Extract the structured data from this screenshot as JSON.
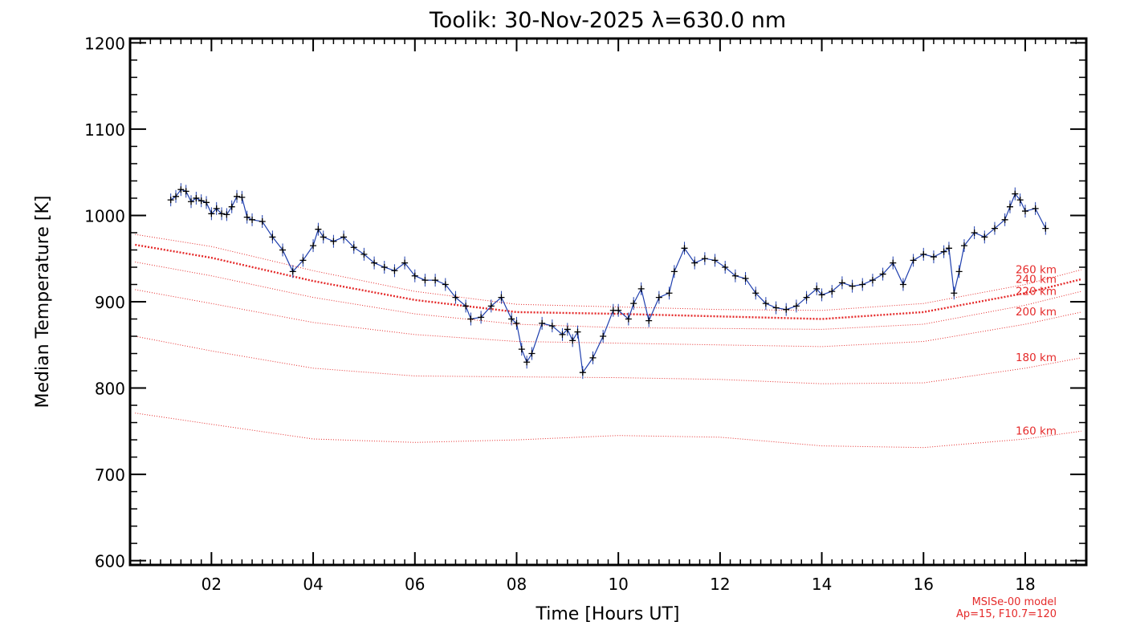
{
  "chart_data": {
    "type": "line",
    "title": "Toolik: 30-Nov-2025 λ=630.0 nm",
    "xlabel": "Time [Hours UT]",
    "ylabel": "Median Temperature [K]",
    "xlim": [
      0.4,
      19.2
    ],
    "ylim": [
      595,
      1205
    ],
    "xticks": [
      2,
      4,
      6,
      8,
      10,
      12,
      14,
      16,
      18
    ],
    "xtick_labels": [
      "02",
      "04",
      "06",
      "08",
      "10",
      "12",
      "14",
      "16",
      "18"
    ],
    "yticks": [
      600,
      700,
      800,
      900,
      1000,
      1100,
      1200
    ],
    "ytick_labels": [
      "600",
      "700",
      "800",
      "900",
      "1000",
      "1100",
      "1200"
    ],
    "grid": false,
    "colors": {
      "observed_line": "#1f3fae",
      "observed_marker": "#000000",
      "model": "#e52a2a",
      "axes": "#000000"
    },
    "observed": {
      "marker": "plus",
      "error_bars": true,
      "x": [
        1.2,
        1.3,
        1.4,
        1.5,
        1.6,
        1.7,
        1.8,
        1.9,
        2.0,
        2.1,
        2.2,
        2.3,
        2.4,
        2.5,
        2.6,
        2.7,
        2.8,
        3.0,
        3.2,
        3.4,
        3.6,
        3.8,
        4.0,
        4.1,
        4.2,
        4.4,
        4.6,
        4.8,
        5.0,
        5.2,
        5.4,
        5.6,
        5.8,
        6.0,
        6.2,
        6.4,
        6.6,
        6.8,
        7.0,
        7.1,
        7.3,
        7.5,
        7.7,
        7.9,
        8.0,
        8.1,
        8.2,
        8.3,
        8.5,
        8.7,
        8.9,
        9.0,
        9.1,
        9.2,
        9.3,
        9.5,
        9.7,
        9.9,
        10.0,
        10.2,
        10.3,
        10.45,
        10.6,
        10.8,
        11.0,
        11.1,
        11.3,
        11.5,
        11.7,
        11.9,
        12.1,
        12.3,
        12.5,
        12.7,
        12.9,
        13.1,
        13.3,
        13.5,
        13.7,
        13.9,
        14.0,
        14.2,
        14.4,
        14.6,
        14.8,
        15.0,
        15.2,
        15.4,
        15.6,
        15.8,
        16.0,
        16.2,
        16.4,
        16.5,
        16.6,
        16.7,
        16.8,
        17.0,
        17.2,
        17.4,
        17.6,
        17.7,
        17.8,
        17.9,
        18.0,
        18.2,
        18.4
      ],
      "y": [
        1018,
        1022,
        1030,
        1028,
        1016,
        1020,
        1017,
        1015,
        1002,
        1008,
        1002,
        1001,
        1010,
        1022,
        1021,
        998,
        995,
        993,
        975,
        960,
        935,
        948,
        965,
        984,
        975,
        970,
        975,
        963,
        955,
        945,
        940,
        936,
        945,
        930,
        925,
        925,
        920,
        905,
        895,
        880,
        882,
        895,
        905,
        880,
        875,
        845,
        830,
        840,
        875,
        872,
        862,
        868,
        855,
        865,
        818,
        835,
        860,
        890,
        890,
        880,
        898,
        915,
        878,
        905,
        910,
        935,
        962,
        945,
        950,
        948,
        940,
        930,
        927,
        910,
        898,
        893,
        891,
        895,
        905,
        915,
        908,
        912,
        922,
        918,
        920,
        925,
        932,
        945,
        920,
        948,
        955,
        952,
        958,
        962,
        910,
        935,
        965,
        980,
        975,
        985,
        995,
        1010,
        1025,
        1018,
        1005,
        1008,
        985
      ]
    },
    "model_series": [
      {
        "name": "160 km",
        "x": [
          0.5,
          2,
          4,
          6,
          8,
          10,
          12,
          14,
          16,
          18,
          19.1
        ],
        "y": [
          771,
          758,
          741,
          737,
          740,
          745,
          743,
          733,
          731,
          741,
          750
        ]
      },
      {
        "name": "180 km",
        "x": [
          0.5,
          2,
          4,
          6,
          8,
          10,
          12,
          14,
          16,
          18,
          19.1
        ],
        "y": [
          860,
          843,
          823,
          814,
          813,
          812,
          810,
          805,
          806,
          823,
          835
        ]
      },
      {
        "name": "200 km",
        "x": [
          0.5,
          2,
          4,
          6,
          8,
          10,
          12,
          14,
          16,
          18,
          19.1
        ],
        "y": [
          914,
          898,
          876,
          862,
          854,
          852,
          850,
          848,
          854,
          874,
          888
        ]
      },
      {
        "name": "220 km",
        "x": [
          0.5,
          2,
          4,
          6,
          8,
          10,
          12,
          14,
          16,
          18,
          19.1
        ],
        "y": [
          946,
          930,
          905,
          886,
          874,
          870,
          869,
          868,
          874,
          896,
          912
        ]
      },
      {
        "name": "240 km",
        "x": [
          0.5,
          2,
          4,
          6,
          8,
          10,
          12,
          14,
          16,
          18,
          19.1
        ],
        "y": [
          966,
          951,
          924,
          902,
          888,
          886,
          883,
          880,
          888,
          910,
          926
        ]
      },
      {
        "name": "260 km",
        "x": [
          0.5,
          2,
          4,
          6,
          8,
          10,
          12,
          14,
          16,
          18,
          19.1
        ],
        "y": [
          978,
          964,
          936,
          912,
          897,
          894,
          891,
          890,
          898,
          920,
          937
        ]
      }
    ],
    "model_name_label": "MSISe-00 model",
    "model_params_label": "Ap=15, F10.7=120"
  }
}
